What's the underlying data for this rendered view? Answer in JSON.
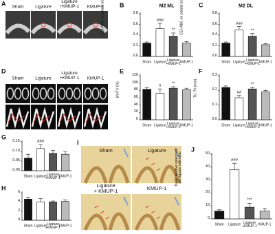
{
  "image_panels": [
    {
      "panel": "A",
      "labels": [
        "Sham",
        "Ligature",
        "Ligature\n+KMUP-1",
        "KMUP-1"
      ]
    },
    {
      "panel": "D",
      "labels": [
        "Sham",
        "Ligature",
        "Ligature\n+KMUP-1",
        "KMUP-1"
      ]
    },
    {
      "panel": "I",
      "labels": [
        "Sham",
        "Ligature",
        "Ligature\n+ KMUP-1",
        "KMUP-1"
      ]
    }
  ],
  "chart_data": [
    {
      "type": "bar",
      "panel": "B",
      "title": "M2 ML",
      "y_label": "CEJ-ABC on palatal side (mm)",
      "categories": [
        "Sham",
        "Ligature",
        "Ligature\n+KMUP-1",
        "KMUP-1"
      ],
      "colors": [
        "#111111",
        "#ffffff",
        "#555555",
        "#bbbbbb"
      ],
      "values": [
        0.25,
        0.52,
        0.38,
        0.25
      ],
      "errors": [
        0.02,
        0.1,
        0.06,
        0.03
      ],
      "annotations": [
        null,
        "###",
        "**",
        null
      ],
      "ylim": [
        0,
        0.8
      ],
      "yticks": [
        {
          "value": 0,
          "label": "0.0"
        },
        0.2,
        0.4,
        0.6,
        0.8
      ]
    },
    {
      "type": "bar",
      "panel": "C",
      "title": "M2 DL",
      "y_label": "CEJ-ABC on palatal side (mm)",
      "categories": [
        "Sham",
        "Ligature",
        "Ligature\n+KMUP-1",
        "KMUP-1"
      ],
      "colors": [
        "#111111",
        "#ffffff",
        "#555555",
        "#bbbbbb"
      ],
      "values": [
        0.25,
        0.5,
        0.38,
        0.22
      ],
      "errors": [
        0.02,
        0.06,
        0.05,
        0.02
      ],
      "annotations": [
        null,
        "###",
        "**",
        null
      ],
      "ylim": [
        0,
        0.8
      ],
      "yticks": [
        {
          "value": 0,
          "label": "0.0"
        },
        0.2,
        0.4,
        0.6,
        0.8
      ]
    },
    {
      "type": "bar",
      "panel": "E",
      "y_label": "BV/TV (%)",
      "categories": [
        "Sham",
        "Ligature",
        "Ligature\n+KMUP-1",
        "KMUP-1"
      ],
      "colors": [
        "#111111",
        "#ffffff",
        "#555555",
        "#bbbbbb"
      ],
      "values": [
        83,
        72,
        86,
        82
      ],
      "errors": [
        5,
        12,
        4,
        4
      ],
      "annotations": [
        null,
        "#",
        "**",
        null
      ],
      "ylim": [
        0,
        120
      ],
      "yticks": [
        0,
        20,
        40,
        60,
        80,
        100,
        120
      ]
    },
    {
      "type": "bar",
      "panel": "F",
      "y_label": "Tb. Th (mm)",
      "categories": [
        "Sham",
        "Ligature",
        "Ligature\n+KMUP-1",
        "KMUP-1"
      ],
      "colors": [
        "#111111",
        "#ffffff",
        "#555555",
        "#bbbbbb"
      ],
      "values": [
        0.22,
        0.15,
        0.21,
        0.19
      ],
      "errors": [
        0.01,
        0.015,
        0.01,
        0.01
      ],
      "annotations": [
        null,
        "##",
        "**",
        null
      ],
      "ylim": [
        0,
        0.3
      ],
      "yticks": [
        {
          "value": 0,
          "label": "0.0"
        },
        0.1,
        0.2,
        0.3
      ]
    },
    {
      "type": "bar",
      "panel": "G",
      "y_label": "Tb. Sp (mm)",
      "categories": [
        "Sham",
        "Ligature",
        "Ligature\n+KMUP-1",
        "KMUP-1"
      ],
      "colors": [
        "#111111",
        "#ffffff",
        "#555555",
        "#bbbbbb"
      ],
      "values": [
        0.065,
        0.115,
        0.09,
        0.085
      ],
      "errors": [
        0.02,
        0.02,
        0.015,
        0.015
      ],
      "annotations": [
        null,
        "###",
        null,
        null
      ],
      "ylim": [
        0,
        0.15
      ],
      "yticks": [
        {
          "value": 0,
          "label": "0.00"
        },
        0.05,
        {
          "value": 0.1,
          "label": "0.10"
        },
        0.15
      ]
    },
    {
      "type": "bar",
      "panel": "H",
      "y_label": "Tb. N (1/mm)",
      "categories": [
        "Sham",
        "Ligature",
        "Ligature\n+KMUP-1",
        "KMUP-1"
      ],
      "colors": [
        "#111111",
        "#ffffff",
        "#555555",
        "#bbbbbb"
      ],
      "values": [
        4.6,
        4.0,
        4.0,
        4.1
      ],
      "errors": [
        0.4,
        0.7,
        0.2,
        0.3
      ],
      "annotations": [
        null,
        null,
        null,
        null
      ],
      "ylim": [
        0,
        6
      ],
      "yticks": [
        0,
        2,
        4,
        6
      ]
    },
    {
      "type": "bar",
      "panel": "J",
      "y_label": "TRAP positive osteoclast\nper square millimeter",
      "categories": [
        "Sham",
        "Ligature",
        "Ligature\n+KMUP-1",
        "KMUP-1"
      ],
      "colors": [
        "#111111",
        "#ffffff",
        "#555555",
        "#bbbbbb"
      ],
      "values": [
        6,
        38,
        9,
        6
      ],
      "errors": [
        1,
        5,
        3,
        2
      ],
      "annotations": [
        null,
        "###",
        "***",
        null
      ],
      "ylim": [
        0,
        50
      ],
      "yticks": [
        0,
        10,
        20,
        30,
        40,
        50
      ]
    }
  ]
}
